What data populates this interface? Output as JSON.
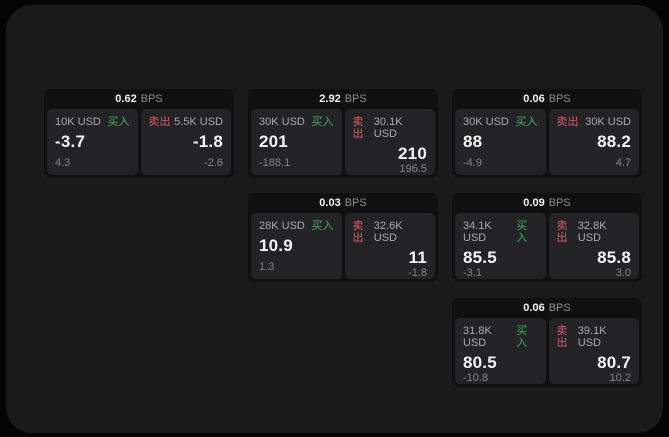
{
  "labels": {
    "bps_unit": "BPS",
    "buy": "买入",
    "sell": "卖出"
  },
  "colors": {
    "background": "#040404",
    "panel": "#1a1a1b",
    "card": "#101011",
    "subpanel": "#232325",
    "buy_green": "#3dab63",
    "sell_red": "#d95b6d"
  },
  "cards": [
    {
      "bps": "0.62",
      "buy": {
        "size": "10K USD",
        "price": "-3.7",
        "change": "4.3"
      },
      "sell": {
        "size": "5.5K USD",
        "price": "-1.8",
        "change": "-2.6"
      }
    },
    {
      "bps": "2.92",
      "buy": {
        "size": "30K USD",
        "price": "201",
        "change": "-188.1"
      },
      "sell": {
        "size": "30.1K USD",
        "price": "210",
        "change": "196.5"
      }
    },
    {
      "bps": "0.06",
      "buy": {
        "size": "30K USD",
        "price": "88",
        "change": "-4.9"
      },
      "sell": {
        "size": "30K USD",
        "price": "88.2",
        "change": "4.7"
      }
    },
    {
      "bps": "0.03",
      "buy": {
        "size": "28K USD",
        "price": "10.9",
        "change": "1.3"
      },
      "sell": {
        "size": "32.6K USD",
        "price": "11",
        "change": "-1.8"
      }
    },
    {
      "bps": "0.09",
      "buy": {
        "size": "34.1K USD",
        "price": "85.5",
        "change": "-3.1"
      },
      "sell": {
        "size": "32.8K USD",
        "price": "85.8",
        "change": "3.0"
      }
    },
    {
      "bps": "0.06",
      "buy": {
        "size": "31.8K USD",
        "price": "80.5",
        "change": "-10.8"
      },
      "sell": {
        "size": "39.1K USD",
        "price": "80.7",
        "change": "10.2"
      }
    }
  ]
}
